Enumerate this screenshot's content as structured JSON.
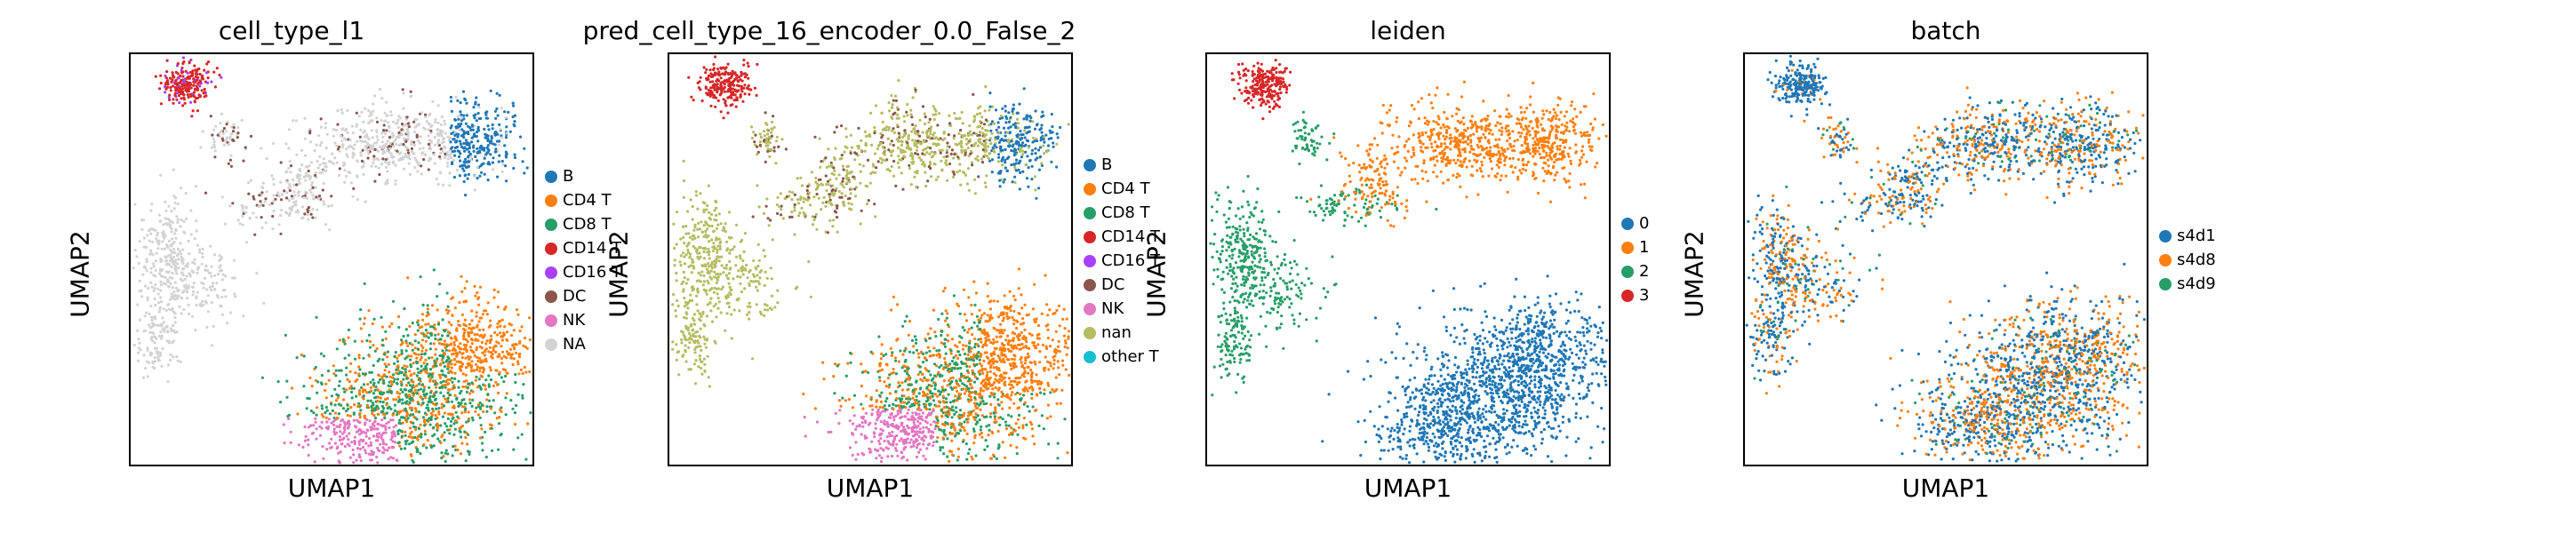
{
  "chart_data": [
    {
      "type": "scatter",
      "title": "cell_type_l1",
      "xlabel": "UMAP1",
      "ylabel": "UMAP2",
      "legend_placement": "right",
      "categories": [
        "B",
        "CD4 T",
        "CD8 T",
        "CD14 T",
        "CD16 T",
        "DC",
        "NK",
        "NA"
      ],
      "colors": [
        "#1f77b4",
        "#ff7f0e",
        "#279e68",
        "#d62728",
        "#aa40fc",
        "#8c564b",
        "#e377c2",
        "#d3d3d3"
      ]
    },
    {
      "type": "scatter",
      "title": "pred_cell_type_16_encoder_0.0_False_2",
      "xlabel": "UMAP1",
      "ylabel": "UMAP2",
      "legend_placement": "right",
      "categories": [
        "B",
        "CD4 T",
        "CD8 T",
        "CD14 T",
        "CD16 T",
        "DC",
        "NK",
        "nan",
        "other T"
      ],
      "colors": [
        "#1f77b4",
        "#ff7f0e",
        "#279e68",
        "#d62728",
        "#aa40fc",
        "#8c564b",
        "#e377c2",
        "#b5bd61",
        "#17becf"
      ]
    },
    {
      "type": "scatter",
      "title": "leiden",
      "xlabel": "UMAP1",
      "ylabel": "UMAP2",
      "legend_placement": "right",
      "categories": [
        "0",
        "1",
        "2",
        "3"
      ],
      "colors": [
        "#1f77b4",
        "#ff7f0e",
        "#279e68",
        "#d62728"
      ]
    },
    {
      "type": "scatter",
      "title": "batch",
      "xlabel": "UMAP1",
      "ylabel": "UMAP2",
      "legend_placement": "right",
      "categories": [
        "s4d1",
        "s4d8",
        "s4d9"
      ],
      "colors": [
        "#1f77b4",
        "#ff7f0e",
        "#279e68"
      ]
    }
  ]
}
